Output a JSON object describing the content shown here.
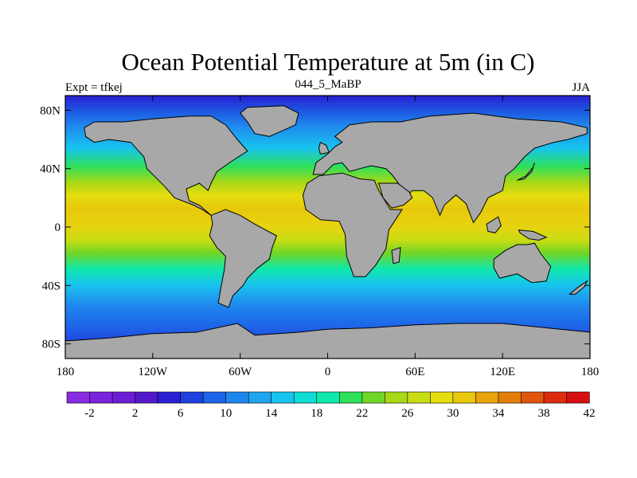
{
  "map": {
    "title": "Ocean Potential Temperature at 5m (in C)",
    "left_label": "Expt = tfkej",
    "center_label": "044_5_MaBP",
    "right_label": "JJA",
    "colors": {
      "land": "#a8a8a8",
      "coast": "#000000"
    },
    "lon_ticks": [
      {
        "value": -180,
        "label": "180"
      },
      {
        "value": -120,
        "label": "120W"
      },
      {
        "value": -60,
        "label": "60W"
      },
      {
        "value": 0,
        "label": "0"
      },
      {
        "value": 60,
        "label": "60E"
      },
      {
        "value": 120,
        "label": "120E"
      },
      {
        "value": 180,
        "label": "180"
      }
    ],
    "lat_ticks": [
      {
        "value": 80,
        "label": "80N"
      },
      {
        "value": 40,
        "label": "40N"
      },
      {
        "value": 0,
        "label": "0"
      },
      {
        "value": -40,
        "label": "40S"
      },
      {
        "value": -80,
        "label": "80S"
      }
    ]
  },
  "colorbar": {
    "labels": [
      "-2",
      "2",
      "6",
      "10",
      "14",
      "18",
      "22",
      "26",
      "30",
      "34",
      "38",
      "42"
    ],
    "colors": [
      "#8a2be2",
      "#7a22dc",
      "#6a1fd6",
      "#5218cc",
      "#2a1fd2",
      "#1e40de",
      "#1e64e8",
      "#1f86ee",
      "#1ea4f0",
      "#18c4ee",
      "#10dcd8",
      "#10e8ac",
      "#2ee05a",
      "#70d628",
      "#a8d816",
      "#c8dc14",
      "#e6dc10",
      "#e8c80c",
      "#e8a40a",
      "#e47e0a",
      "#e0560e",
      "#dc2c10",
      "#d81010"
    ]
  }
}
